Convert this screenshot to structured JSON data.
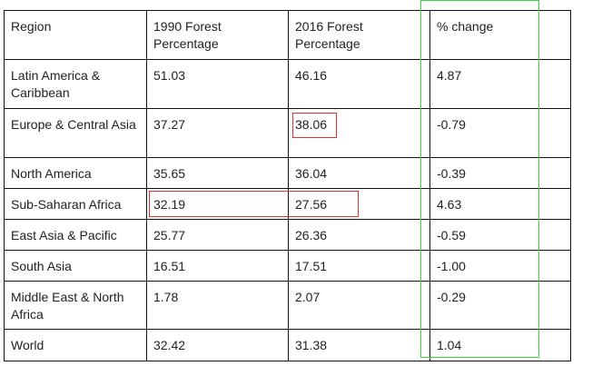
{
  "table": {
    "headers": [
      "Region",
      "1990 Forest Percentage",
      "2016 Forest Percentage",
      "% change"
    ],
    "rows": [
      [
        "Latin America & Caribbean",
        "51.03",
        "46.16",
        "4.87"
      ],
      [
        "Europe & Central Asia",
        "37.27",
        "38.06",
        "-0.79"
      ],
      [
        "North America",
        "35.65",
        "36.04",
        "-0.39"
      ],
      [
        "Sub-Saharan Africa",
        "32.19",
        "27.56",
        "4.63"
      ],
      [
        "East Asia & Pacific",
        "25.77",
        "26.36",
        "-0.59"
      ],
      [
        "South Asia",
        "16.51",
        "17.51",
        "-1.00"
      ],
      [
        "Middle East & North Africa",
        "1.78",
        "2.07",
        "-0.29"
      ],
      [
        "World",
        "32.42",
        "31.38",
        "1.04"
      ]
    ]
  },
  "highlights": {
    "red_color": "#e0302a",
    "green_color": "#3ad83a"
  }
}
